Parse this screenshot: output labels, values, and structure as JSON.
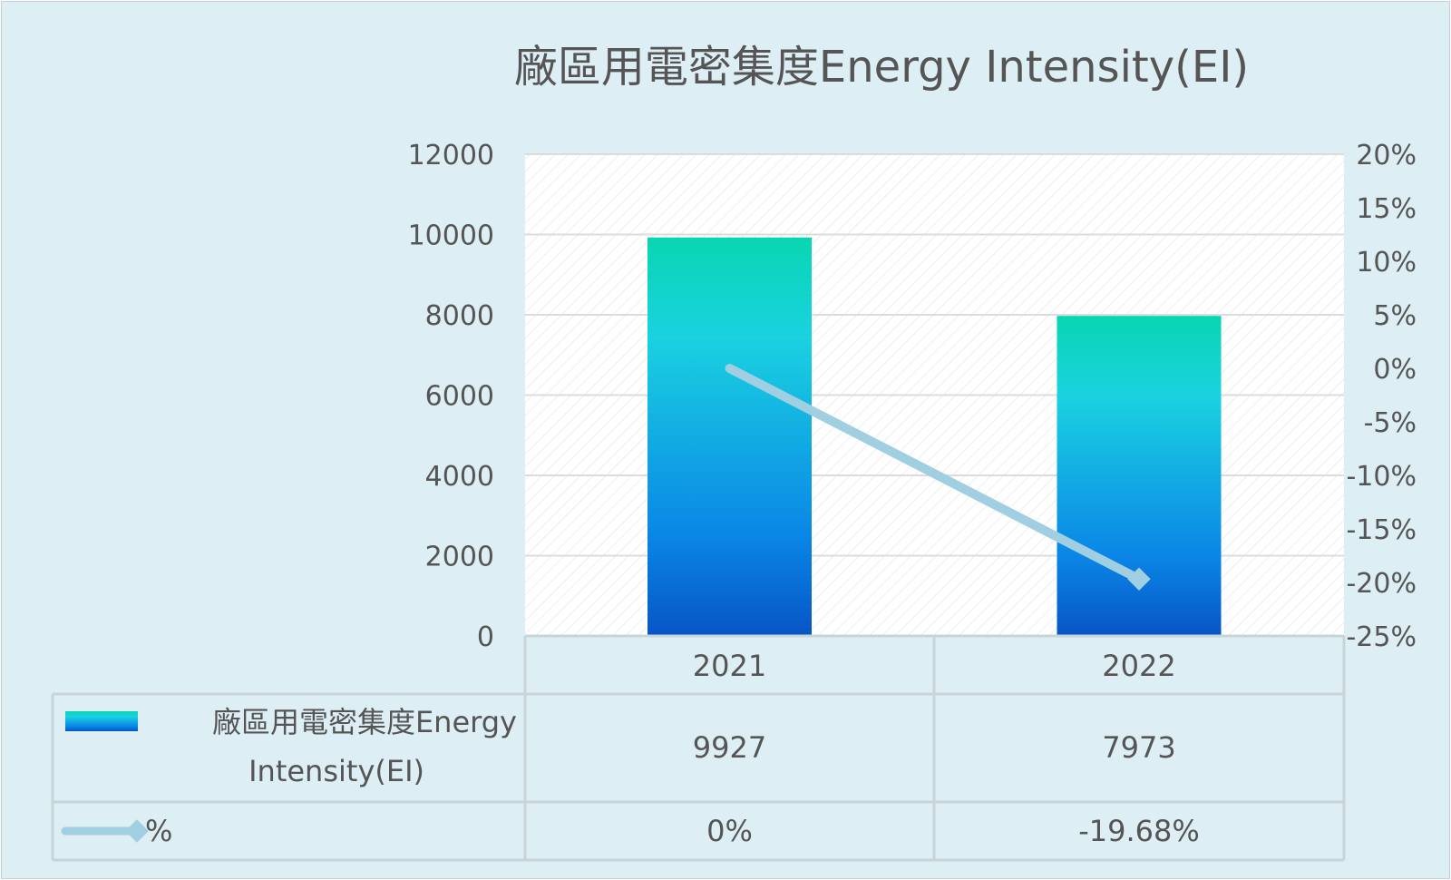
{
  "chart_data": {
    "type": "bar",
    "title": "廠區用電密集度Energy Intensity(EI)",
    "categories": [
      "2021",
      "2022"
    ],
    "series": [
      {
        "name": "廠區用電密集度Energy Intensity(EI)",
        "kind": "bar",
        "axis": "left",
        "values": [
          9927,
          7973
        ],
        "value_labels": [
          "9927",
          "7973"
        ]
      },
      {
        "name": "%",
        "kind": "line",
        "axis": "right",
        "values": [
          0,
          -19.68
        ],
        "value_labels": [
          "0%",
          "-19.68%"
        ],
        "color": "#9fcfe0"
      }
    ],
    "y_left": {
      "min": 0,
      "max": 12000,
      "ticks": [
        "12000",
        "10000",
        "8000",
        "6000",
        "4000",
        "2000",
        "0"
      ]
    },
    "y_right": {
      "min": -25,
      "max": 20,
      "ticks": [
        "20%",
        "15%",
        "10%",
        "5%",
        "0%",
        "-5%",
        "-10%",
        "-15%",
        "-20%",
        "-25%"
      ]
    },
    "grid": true,
    "data_table": true,
    "colors": {
      "background": "#ddeef4",
      "bar_top": "#08d6b2",
      "bar_mid": "#1ad2e0",
      "bar_low": "#0a86e6",
      "bar_bottom": "#0755c4",
      "line": "#9fcfe0",
      "grid": "#dcdcdc",
      "text": "#555555"
    }
  }
}
